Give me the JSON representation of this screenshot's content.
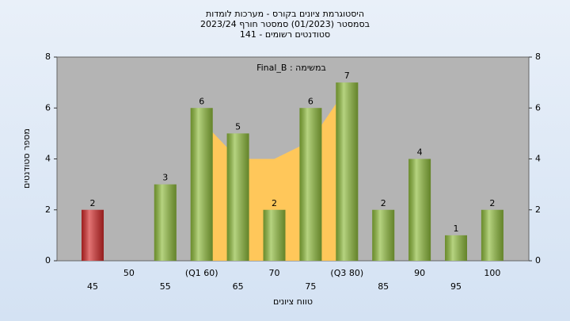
{
  "chart_data": {
    "type": "bar",
    "title": [
      "היסטוגרמת ציונים בקורס - מערכות לומדות",
      "בסמסטר  (01/2023)  סמסטר חורף 2023/24",
      "סטודנטים רשומים - 141"
    ],
    "annotation": "Final_B : במשימה",
    "y_label": "מספר סטודנטים",
    "x_label": "טווח ציונים",
    "categories": [
      "45",
      "50",
      "55",
      "(Q1 60)",
      "65",
      "70",
      "75",
      "(Q3 80)",
      "85",
      "90",
      "95",
      "100"
    ],
    "values": [
      2,
      null,
      3,
      6,
      5,
      2,
      6,
      7,
      2,
      4,
      1,
      2
    ],
    "colors": [
      "#d42a2a",
      "#8fbc3c",
      "#8fbc3c",
      "#8fbc3c",
      "#8fbc3c",
      "#8fbc3c",
      "#8fbc3c",
      "#8fbc3c",
      "#8fbc3c",
      "#8fbc3c",
      "#8fbc3c",
      "#8fbc3c"
    ],
    "area": {
      "color": "#ffc75a",
      "values": [
        null,
        null,
        null,
        5.5,
        4,
        4,
        4.7,
        6.8,
        null,
        null,
        null,
        null
      ]
    },
    "ylim": [
      0,
      8
    ],
    "yticks": [
      0,
      2,
      4,
      6,
      8
    ],
    "y2lim": [
      0,
      8
    ],
    "y2ticks": [
      0,
      2,
      4,
      6,
      8
    ]
  }
}
